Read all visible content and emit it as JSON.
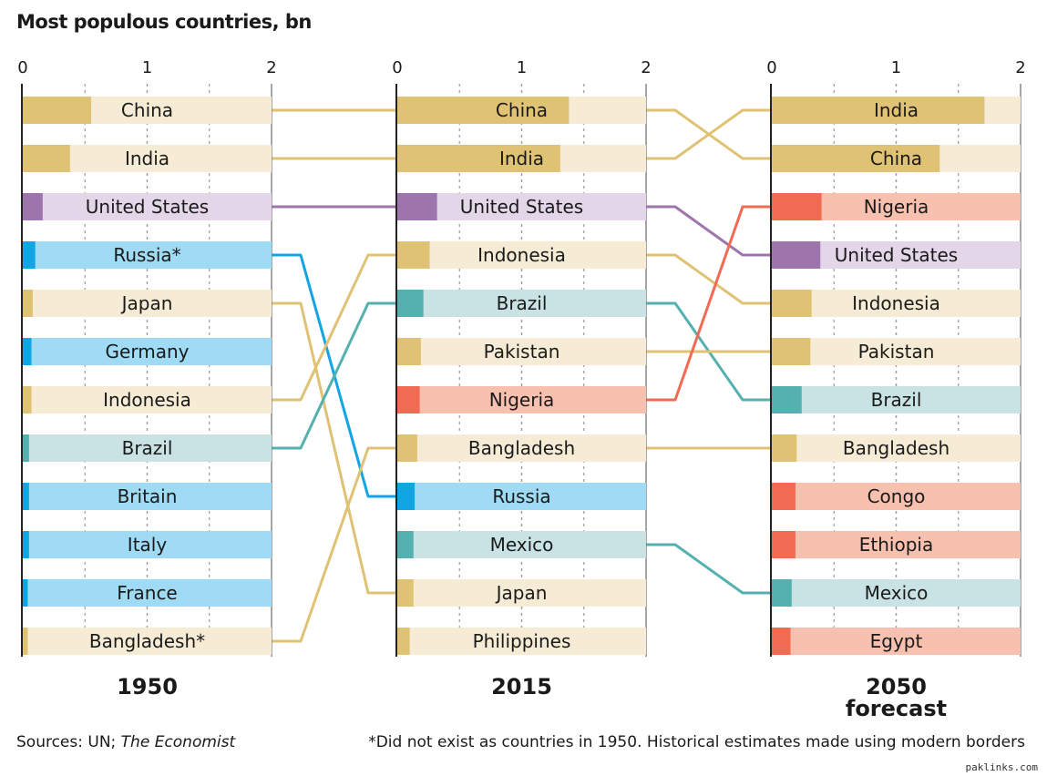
{
  "title": "Most populous countries, bn",
  "footer": {
    "sources_prefix": "Sources: UN; ",
    "sources_italic": "The Economist",
    "footnote": "*Did not exist as countries in 1950. Historical estimates made using modern borders"
  },
  "credit": "paklinks.com",
  "colors": {
    "gold": "#e0c274",
    "gold_light": "#f6ecd5",
    "purple": "#9e74ad",
    "purple_light": "#e3d6e8",
    "blue": "#11a5e4",
    "blue_light": "#9fdbf5",
    "teal": "#55b0b0",
    "teal_light": "#c9e2e4",
    "red": "#f06b52",
    "red_light": "#f8c0ae",
    "axis": "#222222",
    "grid": "#9a9a9a"
  },
  "chart_data": [
    {
      "type": "bar",
      "label": "1950",
      "xlim": [
        0,
        2
      ],
      "ticks": [
        "0",
        "1",
        "2"
      ],
      "categories": [
        "China",
        "India",
        "United States",
        "Russia*",
        "Japan",
        "Germany",
        "Indonesia",
        "Brazil",
        "Britain",
        "Italy",
        "France",
        "Bangladesh*"
      ],
      "values": [
        0.55,
        0.38,
        0.16,
        0.1,
        0.08,
        0.07,
        0.07,
        0.05,
        0.05,
        0.05,
        0.04,
        0.04
      ],
      "groups": [
        "gold",
        "gold",
        "purple",
        "blue",
        "gold",
        "blue",
        "gold",
        "teal",
        "blue",
        "blue",
        "blue",
        "gold"
      ]
    },
    {
      "type": "bar",
      "label": "2015",
      "xlim": [
        0,
        2
      ],
      "ticks": [
        "0",
        "1",
        "2"
      ],
      "categories": [
        "China",
        "India",
        "United States",
        "Indonesia",
        "Brazil",
        "Pakistan",
        "Nigeria",
        "Bangladesh",
        "Russia",
        "Mexico",
        "Japan",
        "Philippines"
      ],
      "values": [
        1.38,
        1.31,
        0.32,
        0.26,
        0.21,
        0.19,
        0.18,
        0.16,
        0.14,
        0.13,
        0.13,
        0.1
      ],
      "groups": [
        "gold",
        "gold",
        "purple",
        "gold",
        "teal",
        "gold",
        "red",
        "gold",
        "blue",
        "teal",
        "gold",
        "gold"
      ]
    },
    {
      "type": "bar",
      "label": "2050",
      "sublabel": "forecast",
      "xlim": [
        0,
        2
      ],
      "ticks": [
        "0",
        "1",
        "2"
      ],
      "categories": [
        "India",
        "China",
        "Nigeria",
        "United States",
        "Indonesia",
        "Pakistan",
        "Brazil",
        "Bangladesh",
        "Congo",
        "Ethiopia",
        "Mexico",
        "Egypt"
      ],
      "values": [
        1.71,
        1.35,
        0.4,
        0.39,
        0.32,
        0.31,
        0.24,
        0.2,
        0.19,
        0.19,
        0.16,
        0.15
      ],
      "groups": [
        "gold",
        "gold",
        "red",
        "purple",
        "gold",
        "gold",
        "teal",
        "gold",
        "red",
        "red",
        "teal",
        "red"
      ]
    }
  ],
  "connectors": [
    {
      "from_panel": 0,
      "from_row": 0,
      "to_row": 0,
      "color": "gold"
    },
    {
      "from_panel": 0,
      "from_row": 1,
      "to_row": 1,
      "color": "gold"
    },
    {
      "from_panel": 0,
      "from_row": 2,
      "to_row": 2,
      "color": "purple"
    },
    {
      "from_panel": 0,
      "from_row": 3,
      "to_row": 8,
      "color": "blue"
    },
    {
      "from_panel": 0,
      "from_row": 4,
      "to_row": 10,
      "color": "gold"
    },
    {
      "from_panel": 0,
      "from_row": 6,
      "to_row": 3,
      "color": "gold"
    },
    {
      "from_panel": 0,
      "from_row": 7,
      "to_row": 4,
      "color": "teal"
    },
    {
      "from_panel": 0,
      "from_row": 11,
      "to_row": 7,
      "color": "gold"
    },
    {
      "from_panel": 1,
      "from_row": 0,
      "to_row": 1,
      "color": "gold"
    },
    {
      "from_panel": 1,
      "from_row": 1,
      "to_row": 0,
      "color": "gold"
    },
    {
      "from_panel": 1,
      "from_row": 2,
      "to_row": 3,
      "color": "purple"
    },
    {
      "from_panel": 1,
      "from_row": 3,
      "to_row": 4,
      "color": "gold"
    },
    {
      "from_panel": 1,
      "from_row": 4,
      "to_row": 6,
      "color": "teal"
    },
    {
      "from_panel": 1,
      "from_row": 5,
      "to_row": 5,
      "color": "gold"
    },
    {
      "from_panel": 1,
      "from_row": 6,
      "to_row": 2,
      "color": "red"
    },
    {
      "from_panel": 1,
      "from_row": 7,
      "to_row": 7,
      "color": "gold"
    },
    {
      "from_panel": 1,
      "from_row": 9,
      "to_row": 10,
      "color": "teal"
    }
  ]
}
